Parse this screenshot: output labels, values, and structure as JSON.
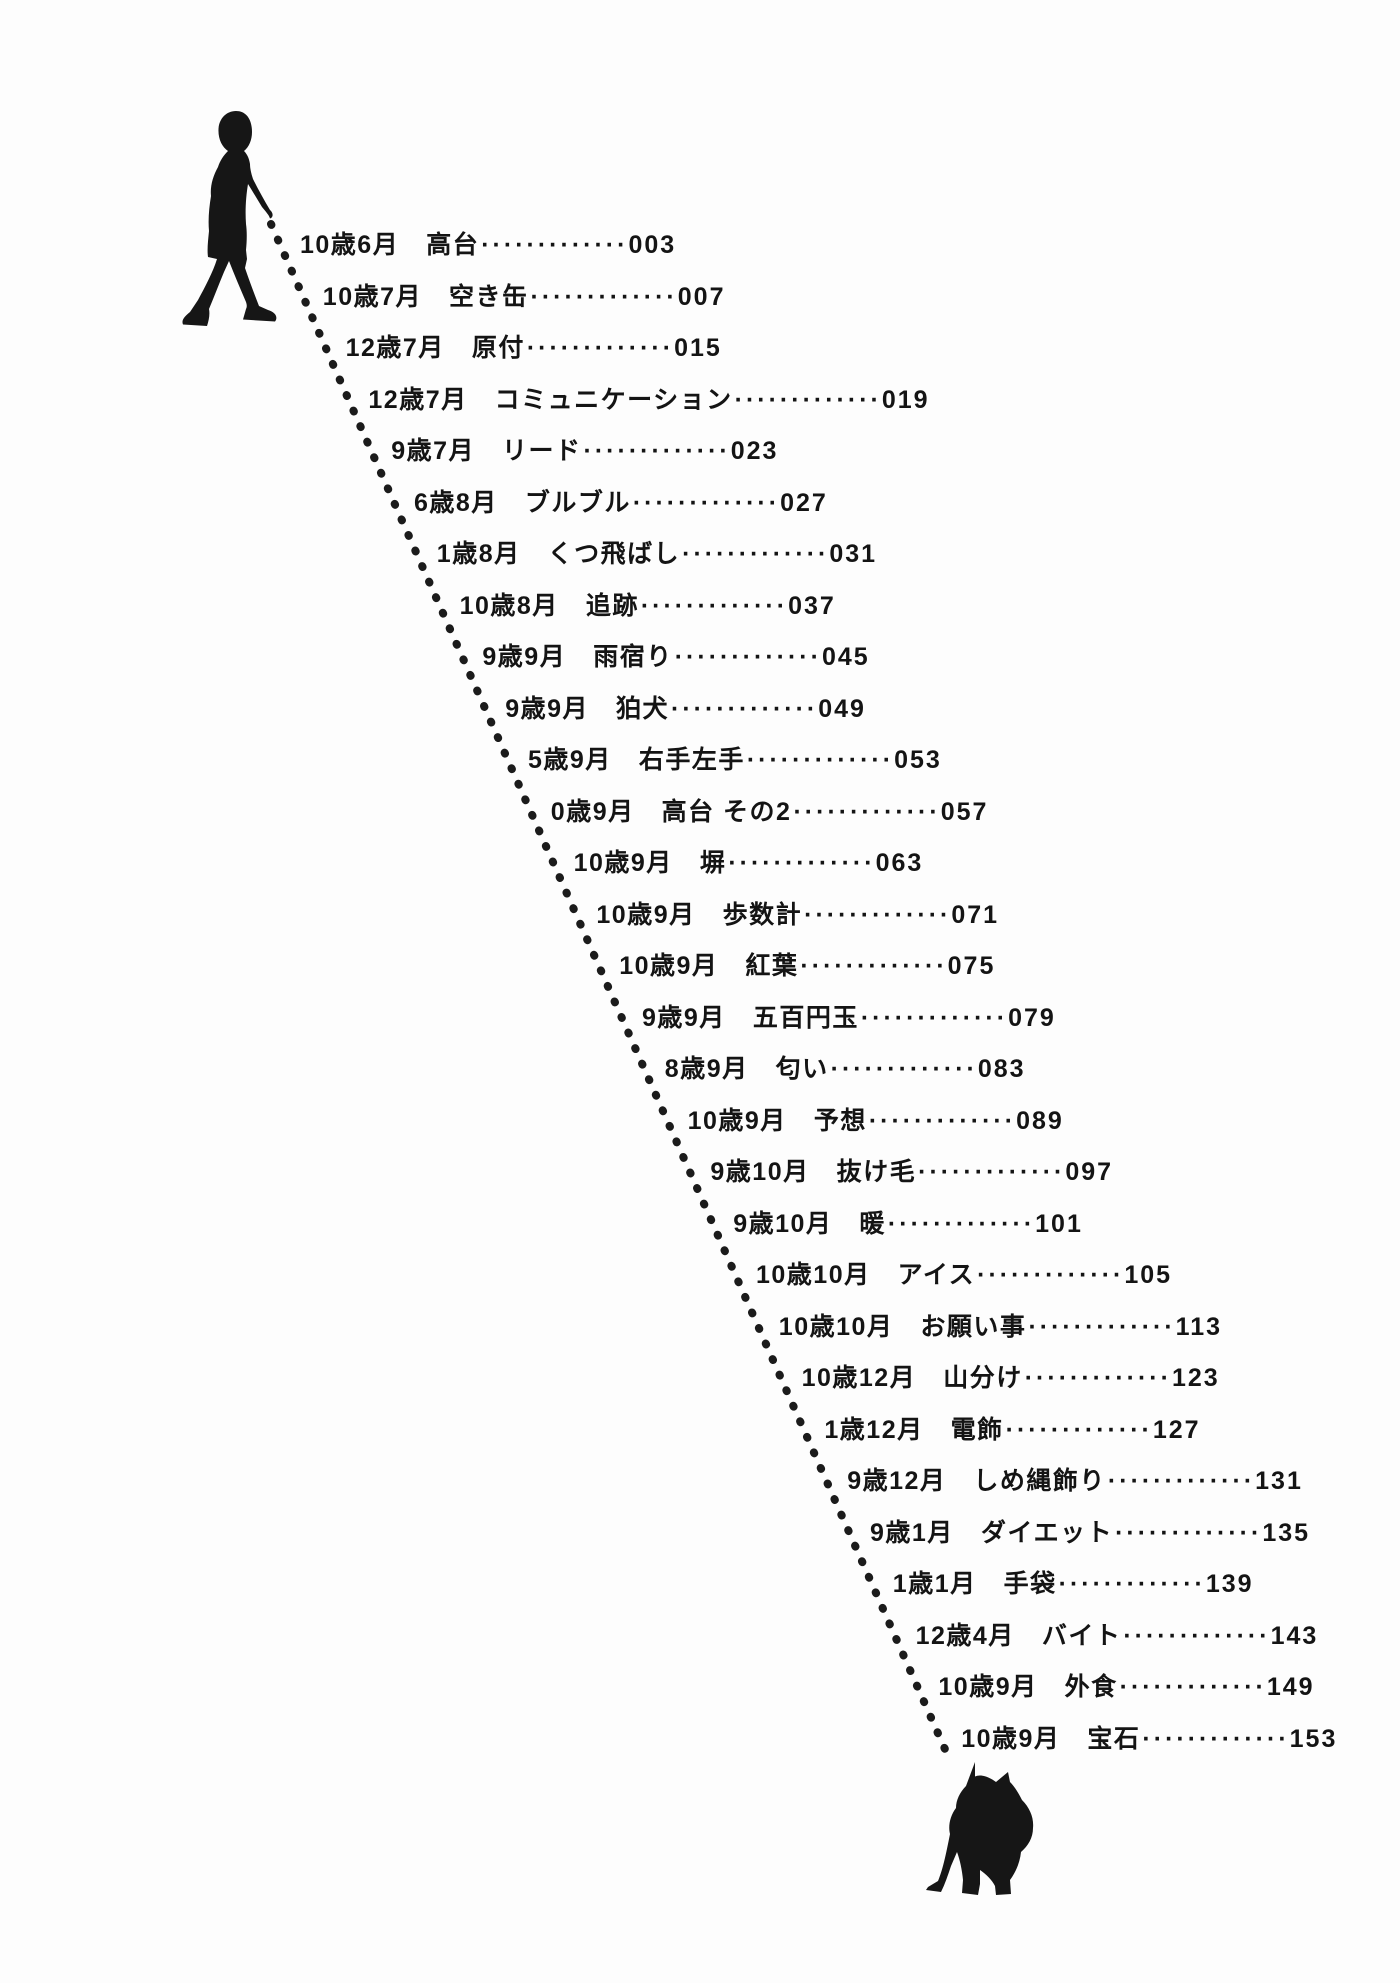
{
  "page": {
    "kind": "book-table-of-contents",
    "background": "#fdfdfd",
    "ink": "#141414"
  },
  "illustrations": {
    "person": "walking-person-silhouette",
    "dog": "dog-silhouette",
    "leash": "dotted-leash-line"
  },
  "toc": {
    "entries": [
      {
        "age": "10歳6月",
        "title": "高台",
        "leader": "·············",
        "page": "003"
      },
      {
        "age": "10歳7月",
        "title": "空き缶",
        "leader": "·············",
        "page": "007"
      },
      {
        "age": "12歳7月",
        "title": "原付",
        "leader": "·············",
        "page": "015"
      },
      {
        "age": "12歳7月",
        "title": "コミュニケーション",
        "leader": "·············",
        "page": "019"
      },
      {
        "age": "9歳7月",
        "title": "リード",
        "leader": "·············",
        "page": "023"
      },
      {
        "age": "6歳8月",
        "title": "ブルブル",
        "leader": "·············",
        "page": "027"
      },
      {
        "age": "1歳8月",
        "title": "くつ飛ばし",
        "leader": "·············",
        "page": "031"
      },
      {
        "age": "10歳8月",
        "title": "追跡",
        "leader": "·············",
        "page": "037"
      },
      {
        "age": "9歳9月",
        "title": "雨宿り",
        "leader": "·············",
        "page": "045"
      },
      {
        "age": "9歳9月",
        "title": "狛犬",
        "leader": "·············",
        "page": "049"
      },
      {
        "age": "5歳9月",
        "title": "右手左手",
        "leader": "·············",
        "page": "053"
      },
      {
        "age": "0歳9月",
        "title": "高台 その2",
        "leader": "·············",
        "page": "057"
      },
      {
        "age": "10歳9月",
        "title": "塀",
        "leader": "·············",
        "page": "063"
      },
      {
        "age": "10歳9月",
        "title": "歩数計",
        "leader": "·············",
        "page": "071"
      },
      {
        "age": "10歳9月",
        "title": "紅葉",
        "leader": "·············",
        "page": "075"
      },
      {
        "age": "9歳9月",
        "title": "五百円玉",
        "leader": "·············",
        "page": "079"
      },
      {
        "age": "8歳9月",
        "title": "匂い",
        "leader": "·············",
        "page": "083"
      },
      {
        "age": "10歳9月",
        "title": "予想",
        "leader": "·············",
        "page": "089"
      },
      {
        "age": "9歳10月",
        "title": "抜け毛",
        "leader": "·············",
        "page": "097"
      },
      {
        "age": "9歳10月",
        "title": "暖",
        "leader": "·············",
        "page": "101"
      },
      {
        "age": "10歳10月",
        "title": "アイス",
        "leader": "·············",
        "page": "105"
      },
      {
        "age": "10歳10月",
        "title": "お願い事",
        "leader": "·············",
        "page": "113"
      },
      {
        "age": "10歳12月",
        "title": "山分け",
        "leader": "·············",
        "page": "123"
      },
      {
        "age": "1歳12月",
        "title": "電飾",
        "leader": "·············",
        "page": "127"
      },
      {
        "age": "9歳12月",
        "title": "しめ縄飾り",
        "leader": "·············",
        "page": "131"
      },
      {
        "age": "9歳1月",
        "title": "ダイエット",
        "leader": "·············",
        "page": "135"
      },
      {
        "age": "1歳1月",
        "title": "手袋",
        "leader": "·············",
        "page": "139"
      },
      {
        "age": "12歳4月",
        "title": "バイト",
        "leader": "·············",
        "page": "143"
      },
      {
        "age": "10歳9月",
        "title": "外食",
        "leader": "·············",
        "page": "149"
      },
      {
        "age": "10歳9月",
        "title": "宝石",
        "leader": "·············",
        "page": "153"
      }
    ]
  }
}
